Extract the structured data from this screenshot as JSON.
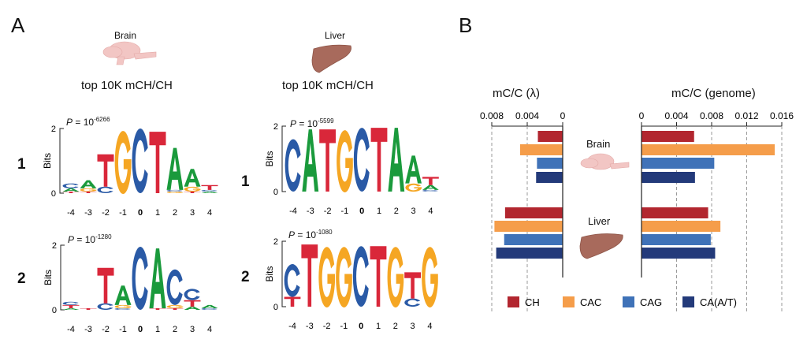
{
  "panels": {
    "a": "A",
    "b": "B"
  },
  "logos": {
    "tissues": [
      {
        "name": "Brain",
        "subtitle": "top 10K mCH/CH"
      },
      {
        "name": "Liver",
        "subtitle": "top 10K mCH/CH"
      }
    ],
    "ylabel": "Bits",
    "yticks": [
      "0",
      "2"
    ],
    "positions": [
      "-4",
      "-3",
      "-2",
      "-1",
      "0",
      "1",
      "2",
      "3",
      "4"
    ],
    "motifs": [
      {
        "tissue": "Brain",
        "row": "1",
        "p_base": "10",
        "p_exp": "-6266",
        "columns": [
          [
            [
              "T",
              0.05
            ],
            [
              "A",
              0.1
            ],
            [
              "C",
              0.15
            ]
          ],
          [
            [
              "T",
              0.05
            ],
            [
              "G",
              0.1
            ],
            [
              "A",
              0.25
            ]
          ],
          [
            [
              "C",
              0.2
            ],
            [
              "T",
              1.0
            ]
          ],
          [
            [
              "G",
              1.95
            ]
          ],
          [
            [
              "C",
              2.0
            ]
          ],
          [
            [
              "T",
              1.9
            ]
          ],
          [
            [
              "G",
              0.05
            ],
            [
              "C",
              0.05
            ],
            [
              "A",
              1.3
            ]
          ],
          [
            [
              "T",
              0.05
            ],
            [
              "G",
              0.15
            ],
            [
              "A",
              0.55
            ]
          ],
          [
            [
              "A",
              0.05
            ],
            [
              "C",
              0.05
            ],
            [
              "T",
              0.15
            ]
          ]
        ]
      },
      {
        "tissue": "Liver",
        "row": "1",
        "p_base": "10",
        "p_exp": "-5599",
        "columns": [
          [
            [
              "C",
              1.6
            ]
          ],
          [
            [
              "A",
              1.9
            ]
          ],
          [
            [
              "T",
              1.9
            ]
          ],
          [
            [
              "G",
              1.9
            ]
          ],
          [
            [
              "C",
              1.95
            ]
          ],
          [
            [
              "T",
              1.95
            ]
          ],
          [
            [
              "A",
              1.95
            ]
          ],
          [
            [
              "G",
              0.25
            ],
            [
              "A",
              0.85
            ]
          ],
          [
            [
              "C",
              0.05
            ],
            [
              "A",
              0.15
            ],
            [
              "T",
              0.25
            ]
          ]
        ]
      },
      {
        "tissue": "Brain",
        "row": "2",
        "p_base": "10",
        "p_exp": "-1280",
        "columns": [
          [
            [
              "A",
              0.05
            ],
            [
              "T",
              0.1
            ],
            [
              "C",
              0.1
            ]
          ],
          [
            [
              "T",
              0.05
            ]
          ],
          [
            [
              "C",
              0.2
            ],
            [
              "T",
              1.1
            ]
          ],
          [
            [
              "C",
              0.05
            ],
            [
              "G",
              0.1
            ],
            [
              "A",
              0.6
            ]
          ],
          [
            [
              "C",
              1.95
            ]
          ],
          [
            [
              "T",
              0.05
            ],
            [
              "A",
              1.85
            ]
          ],
          [
            [
              "T",
              0.05
            ],
            [
              "G",
              0.1
            ],
            [
              "C",
              1.1
            ]
          ],
          [
            [
              "A",
              0.1
            ],
            [
              "T",
              0.2
            ],
            [
              "C",
              0.35
            ]
          ],
          [
            [
              "C",
              0.05
            ],
            [
              "A",
              0.1
            ]
          ]
        ]
      },
      {
        "tissue": "Liver",
        "row": "2",
        "p_base": "10",
        "p_exp": "-1080",
        "columns": [
          [
            [
              "T",
              0.3
            ],
            [
              "C",
              1.0
            ]
          ],
          [
            [
              "T",
              1.9
            ]
          ],
          [
            [
              "G",
              1.85
            ]
          ],
          [
            [
              "G",
              1.85
            ]
          ],
          [
            [
              "C",
              1.85
            ]
          ],
          [
            [
              "T",
              1.85
            ]
          ],
          [
            [
              "G",
              1.85
            ]
          ],
          [
            [
              "C",
              0.25
            ],
            [
              "T",
              0.8
            ]
          ],
          [
            [
              "G",
              1.85
            ]
          ]
        ]
      }
    ],
    "letter_colors": {
      "A": "#1a9a3c",
      "C": "#2a5aa6",
      "G": "#f5a623",
      "T": "#d9273a"
    }
  },
  "chart_data": [
    {
      "type": "bar",
      "orientation": "horizontal",
      "title": "mC/C (λ)",
      "direction": "reversed",
      "xlim": [
        0,
        0.008
      ],
      "xticks": [
        "0.008",
        "0.004",
        "0"
      ],
      "grid": true,
      "categories": [
        "Brain",
        "Liver"
      ],
      "series": [
        {
          "name": "CH",
          "values": [
            0.0028,
            0.0065
          ]
        },
        {
          "name": "CAC",
          "values": [
            0.0048,
            0.0077
          ]
        },
        {
          "name": "CAG",
          "values": [
            0.0029,
            0.0066
          ]
        },
        {
          "name": "CA(A/T)",
          "values": [
            0.003,
            0.0075
          ]
        }
      ]
    },
    {
      "type": "bar",
      "orientation": "horizontal",
      "title": "mC/C (genome)",
      "xlim": [
        0,
        0.016
      ],
      "xticks": [
        "0",
        "0.004",
        "0.008",
        "0.012",
        "0.016"
      ],
      "grid": true,
      "categories": [
        "Brain",
        "Liver"
      ],
      "series": [
        {
          "name": "CH",
          "values": [
            0.006,
            0.0076
          ]
        },
        {
          "name": "CAC",
          "values": [
            0.0152,
            0.009
          ]
        },
        {
          "name": "CAG",
          "values": [
            0.0083,
            0.0079
          ]
        },
        {
          "name": "CA(A/T)",
          "values": [
            0.0061,
            0.0084
          ]
        }
      ]
    }
  ],
  "legend": {
    "placement": "bottom",
    "items": [
      {
        "label": "CH",
        "color": "#b2262f"
      },
      {
        "label": "CAC",
        "color": "#f59d4a"
      },
      {
        "label": "CAG",
        "color": "#3f72b8"
      },
      {
        "label": "CA(A/T)",
        "color": "#233a7a"
      }
    ]
  }
}
